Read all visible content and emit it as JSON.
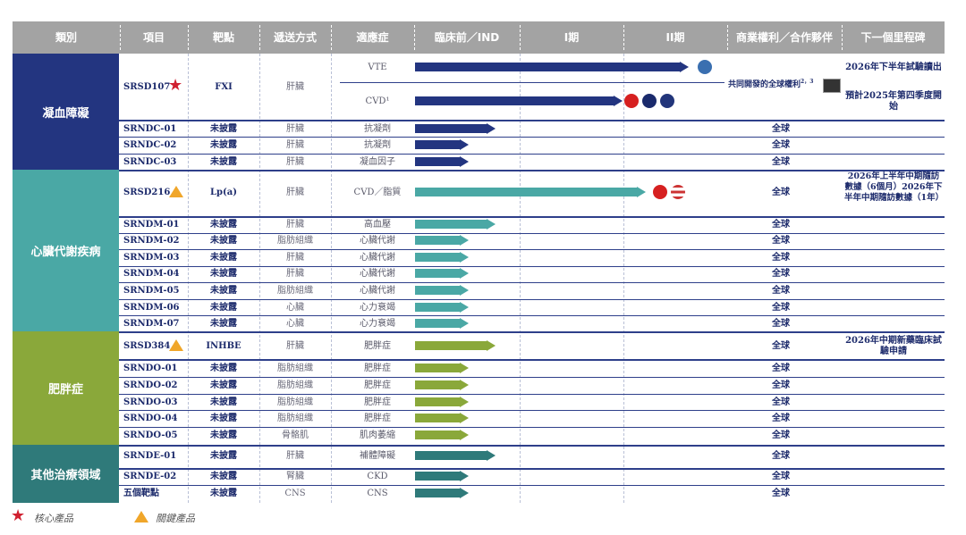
{
  "header": [
    "類別",
    "項目",
    "靶點",
    "遞送方式",
    "適應症",
    "臨床前／IND",
    "I期",
    "II期",
    "商業權利／合作夥伴",
    "下一個里程碑"
  ],
  "categories": [
    {
      "label": "凝血障礙",
      "color": "#233580"
    },
    {
      "label": "心臟代謝疾病",
      "color": "#4aa8a5"
    },
    {
      "label": "肥胖症",
      "color": "#8aa83a"
    },
    {
      "label": "其他治療領域",
      "color": "#2f7a7a"
    }
  ],
  "rows": {
    "srsd107": {
      "code": "SRSD107",
      "target": "FXI",
      "delivery": "肝臟",
      "vte": "VTE",
      "cvd": "CVD¹",
      "rights": "共同開發的全球權利",
      "rights_sup": "2，3",
      "mile_vte": "2026年下半年試驗讀出",
      "mile_cvd": "預計2025年第四季度開始"
    },
    "srndc01": {
      "code": "SRNDC-01",
      "target": "未披露",
      "delivery": "肝臟",
      "ind": "抗凝劑",
      "rights": "全球"
    },
    "srndc02": {
      "code": "SRNDC-02",
      "target": "未披露",
      "delivery": "肝臟",
      "ind": "抗凝劑",
      "rights": "全球"
    },
    "srndc03": {
      "code": "SRNDC-03",
      "target": "未披露",
      "delivery": "肝臟",
      "ind": "凝血因子",
      "rights": "全球"
    },
    "srsd216": {
      "code": "SRSD216",
      "target": "Lp(a)",
      "delivery": "肝臟",
      "ind": "CVD／脂質",
      "rights": "全球",
      "mile": "2026年上半年中期隨訪數據（6個月）2026年下半年中期隨訪數據（1年）"
    },
    "srndm01": {
      "code": "SRNDM-01",
      "target": "未披露",
      "delivery": "肝臟",
      "ind": "高血壓",
      "rights": "全球"
    },
    "srndm02": {
      "code": "SRNDM-02",
      "target": "未披露",
      "delivery": "脂肪組織",
      "ind": "心臟代謝",
      "rights": "全球"
    },
    "srndm03": {
      "code": "SRNDM-03",
      "target": "未披露",
      "delivery": "肝臟",
      "ind": "心臟代謝",
      "rights": "全球"
    },
    "srndm04": {
      "code": "SRNDM-04",
      "target": "未披露",
      "delivery": "肝臟",
      "ind": "心臟代謝",
      "rights": "全球"
    },
    "srndm05": {
      "code": "SRNDM-05",
      "target": "未披露",
      "delivery": "脂肪組織",
      "ind": "心臟代謝",
      "rights": "全球"
    },
    "srndm06": {
      "code": "SRNDM-06",
      "target": "未披露",
      "delivery": "心臟",
      "ind": "心力衰竭",
      "rights": "全球"
    },
    "srndm07": {
      "code": "SRNDM-07",
      "target": "未披露",
      "delivery": "心臟",
      "ind": "心力衰竭",
      "rights": "全球"
    },
    "srsd384": {
      "code": "SRSD384",
      "target": "INHBE",
      "delivery": "肝臟",
      "ind": "肥胖症",
      "rights": "全球",
      "mile": "2026年中期新藥臨床試驗申請"
    },
    "srndo01": {
      "code": "SRNDO-01",
      "target": "未披露",
      "delivery": "脂肪組織",
      "ind": "肥胖症",
      "rights": "全球"
    },
    "srndo02": {
      "code": "SRNDO-02",
      "target": "未披露",
      "delivery": "脂肪組織",
      "ind": "肥胖症",
      "rights": "全球"
    },
    "srndo03": {
      "code": "SRNDO-03",
      "target": "未披露",
      "delivery": "脂肪組織",
      "ind": "肥胖症",
      "rights": "全球"
    },
    "srndo04": {
      "code": "SRNDO-04",
      "target": "未披露",
      "delivery": "脂肪組織",
      "ind": "肥胖症",
      "rights": "全球"
    },
    "srndo05": {
      "code": "SRNDO-05",
      "target": "未披露",
      "delivery": "骨骼肌",
      "ind": "肌肉萎縮",
      "rights": "全球"
    },
    "srnde01": {
      "code": "SRNDE-01",
      "target": "未披露",
      "delivery": "肝臟",
      "ind": "補體障礙",
      "rights": "全球"
    },
    "srnde02": {
      "code": "SRNDE-02",
      "target": "未披露",
      "delivery": "腎臟",
      "ind": "CKD",
      "rights": "全球"
    },
    "five": {
      "code": "五個靶點",
      "target": "未披露",
      "delivery": "CNS",
      "ind": "CNS",
      "rights": "全球"
    }
  },
  "legend": {
    "core": "核心產品",
    "key": "關鍵產品"
  }
}
